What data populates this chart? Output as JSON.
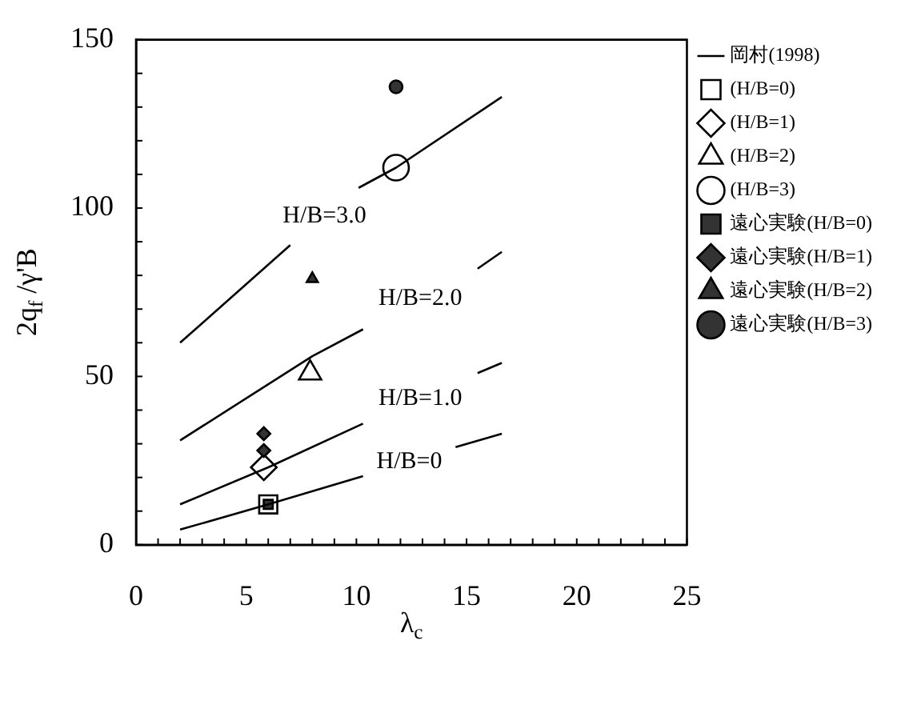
{
  "chart_data": {
    "type": "scatter",
    "xlabel": "λ$_{c}$",
    "ylabel": "2q$_{f}$ /γ'B",
    "xlim": [
      0,
      25
    ],
    "xticks": [
      0,
      5,
      10,
      15,
      20,
      25
    ],
    "ylim": [
      0,
      150
    ],
    "yticks": [
      0,
      50,
      100,
      150
    ],
    "grid": false,
    "legend": "right",
    "series": [
      {
        "name": "岡村(1998)",
        "type": "line",
        "color": "#000000",
        "marker": "none",
        "x": [
          2,
          6,
          10.3,
          12.4,
          14.5,
          16.6
        ],
        "values": [
          4.5,
          12,
          20.4,
          null,
          29,
          33
        ]
      },
      {
        "type": "line",
        "color": "#000000",
        "marker": "none",
        "x": [
          2,
          6,
          10.3,
          12.9,
          15.5,
          16.6
        ],
        "values": [
          12,
          23,
          36,
          null,
          51,
          54
        ]
      },
      {
        "type": "line",
        "color": "#000000",
        "marker": "none",
        "x": [
          2,
          8,
          10.3,
          12.9,
          15.5,
          16.6
        ],
        "values": [
          31,
          56,
          64,
          null,
          82,
          87
        ]
      },
      {
        "type": "line",
        "color": "#000000",
        "marker": "none",
        "x": [
          2,
          7,
          8.5,
          10.1,
          11.8,
          16.6
        ],
        "values": [
          60,
          89,
          null,
          106,
          112,
          133
        ]
      },
      {
        "name": "(H/B=0)",
        "color": "#ffffff",
        "marker": "square",
        "x": [
          6
        ],
        "values": [
          12
        ]
      },
      {
        "name": "(H/B=1)",
        "color": "#ffffff",
        "marker": "diamond",
        "x": [
          5.8
        ],
        "values": [
          23
        ]
      },
      {
        "name": "(H/B=2)",
        "color": "#ffffff",
        "marker": "triangle",
        "x": [
          7.9
        ],
        "values": [
          51
        ]
      },
      {
        "name": "(H/B=3)",
        "color": "#ffffff",
        "marker": "circle",
        "x": [
          11.8
        ],
        "values": [
          112
        ]
      },
      {
        "name": "遠心実験(H/B=0)",
        "color": "#333333",
        "marker": "square",
        "x": [
          6
        ],
        "values": [
          12
        ]
      },
      {
        "name": "遠心実験(H/B=1)",
        "color": "#333333",
        "marker": "diamond",
        "x": [
          5.8,
          5.8
        ],
        "values": [
          33,
          28
        ]
      },
      {
        "name": "遠心実験(H/B=2)",
        "color": "#333333",
        "marker": "triangle",
        "x": [
          8
        ],
        "values": [
          79
        ]
      },
      {
        "name": "遠心実験(H/B=3)",
        "color": "#333333",
        "marker": "circle",
        "x": [
          11.8
        ],
        "values": [
          136
        ]
      }
    ],
    "annotations": [
      "H/B=0",
      "H/B=1.0",
      "H/B=2.0",
      "H/B=3.0"
    ]
  }
}
